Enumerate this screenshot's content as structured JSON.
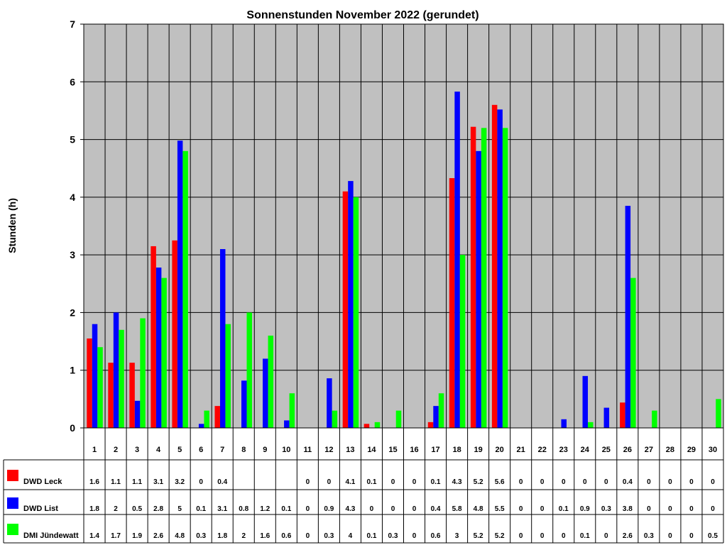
{
  "chart_data": {
    "type": "bar",
    "title": "Sonnenstunden November 2022 (gerundet)",
    "xlabel": "",
    "ylabel": "Stunden (h)",
    "ylim": [
      0,
      7
    ],
    "yticks": [
      "0",
      "1",
      "2",
      "3",
      "4",
      "5",
      "6",
      "7"
    ],
    "grid": true,
    "legend": "table-below",
    "categories": [
      "1",
      "2",
      "3",
      "4",
      "5",
      "6",
      "7",
      "8",
      "9",
      "10",
      "11",
      "12",
      "13",
      "14",
      "15",
      "16",
      "17",
      "18",
      "19",
      "20",
      "21",
      "22",
      "23",
      "24",
      "25",
      "26",
      "27",
      "28",
      "29",
      "30"
    ],
    "series": [
      {
        "name": "DWD Leck",
        "color": "#ff0000",
        "values": [
          1.55,
          1.13,
          1.13,
          3.15,
          3.25,
          0,
          0.38,
          null,
          null,
          null,
          0,
          0,
          4.1,
          0.07,
          0,
          0,
          0.1,
          4.33,
          5.22,
          5.6,
          0,
          0,
          0,
          0,
          0,
          0.44,
          0,
          0,
          0,
          0
        ],
        "labels": [
          "1.6",
          "1.1",
          "1.1",
          "3.1",
          "3.2",
          "0",
          "0.4",
          "",
          "",
          "",
          "0",
          "0",
          "4.1",
          "0.1",
          "0",
          "0",
          "0.1",
          "4.3",
          "5.2",
          "5.6",
          "0",
          "0",
          "0",
          "0",
          "0",
          "0.4",
          "0",
          "0",
          "0",
          "0"
        ]
      },
      {
        "name": "DWD List",
        "color": "#0000ff",
        "values": [
          1.8,
          2.0,
          0.47,
          2.78,
          4.98,
          0.07,
          3.1,
          0.82,
          1.2,
          0.13,
          0,
          0.86,
          4.28,
          0,
          0,
          0,
          0.38,
          5.83,
          4.8,
          5.52,
          0,
          0,
          0.15,
          0.9,
          0.35,
          3.85,
          0,
          0,
          0,
          0
        ],
        "labels": [
          "1.8",
          "2",
          "0.5",
          "2.8",
          "5",
          "0.1",
          "3.1",
          "0.8",
          "1.2",
          "0.1",
          "0",
          "0.9",
          "4.3",
          "0",
          "0",
          "0",
          "0.4",
          "5.8",
          "4.8",
          "5.5",
          "0",
          "0",
          "0.1",
          "0.9",
          "0.3",
          "3.8",
          "0",
          "0",
          "0",
          "0"
        ]
      },
      {
        "name": "DMI Jündewatt",
        "color": "#00ff00",
        "values": [
          1.4,
          1.7,
          1.9,
          2.6,
          4.8,
          0.3,
          1.8,
          2.0,
          1.6,
          0.6,
          0,
          0.3,
          4.0,
          0.1,
          0.3,
          0,
          0.6,
          3.0,
          5.2,
          5.2,
          0,
          0,
          0,
          0.1,
          0,
          2.6,
          0.3,
          0,
          0,
          0.5
        ],
        "labels": [
          "1.4",
          "1.7",
          "1.9",
          "2.6",
          "4.8",
          "0.3",
          "1.8",
          "2",
          "1.6",
          "0.6",
          "0",
          "0.3",
          "4",
          "0.1",
          "0.3",
          "0",
          "0.6",
          "3",
          "5.2",
          "5.2",
          "0",
          "0",
          "0",
          "0.1",
          "0",
          "2.6",
          "0.3",
          "0",
          "0",
          "0.5"
        ]
      }
    ]
  },
  "colors": {
    "plot_background": "#c0c0c0",
    "grid": "#000000"
  }
}
